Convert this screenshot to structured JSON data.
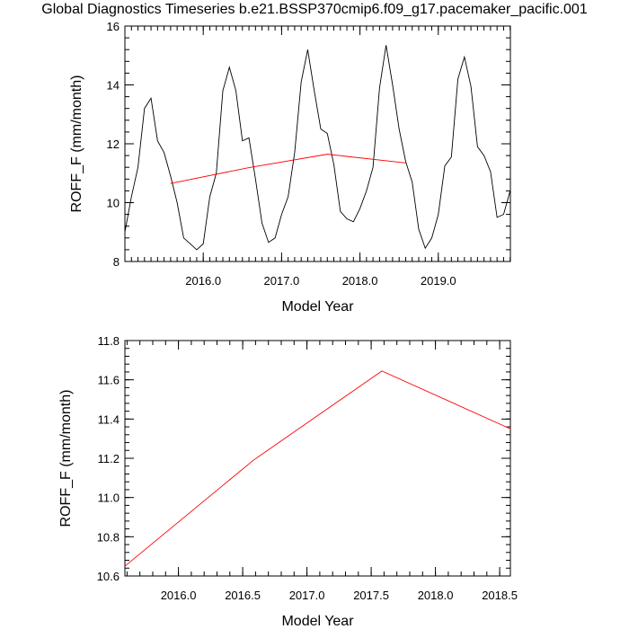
{
  "title": "Global Diagnostics Timeseries b.e21.BSSP370cmip6.f09_g17.pacemaker_pacific.001",
  "colors": {
    "monthly": "#000000",
    "annual": "#ff0000",
    "axis": "#000000"
  },
  "chart_data": [
    {
      "type": "line",
      "xlabel": "Model Year",
      "ylabel": "ROFF_F (mm/month)",
      "xlim": [
        2015.0,
        2019.92
      ],
      "ylim": [
        8,
        16
      ],
      "xticks": [
        2016.0,
        2017.0,
        2018.0,
        2019.0
      ],
      "xtick_labels": [
        "2016.0",
        "2017.0",
        "2018.0",
        "2019.0"
      ],
      "yticks": [
        8,
        10,
        12,
        14,
        16
      ],
      "ytick_labels": [
        "8",
        "10",
        "12",
        "14",
        "16"
      ],
      "series": [
        {
          "name": "monthly",
          "x": [
            2015.0,
            2015.0833,
            2015.1667,
            2015.25,
            2015.3333,
            2015.4167,
            2015.5,
            2015.5833,
            2015.6667,
            2015.75,
            2015.8333,
            2015.9167,
            2016.0,
            2016.0833,
            2016.1667,
            2016.25,
            2016.3333,
            2016.4167,
            2016.5,
            2016.5833,
            2016.6667,
            2016.75,
            2016.8333,
            2016.9167,
            2017.0,
            2017.0833,
            2017.1667,
            2017.25,
            2017.3333,
            2017.4167,
            2017.5,
            2017.5833,
            2017.6667,
            2017.75,
            2017.8333,
            2017.9167,
            2018.0,
            2018.0833,
            2018.1667,
            2018.25,
            2018.3333,
            2018.4167,
            2018.5,
            2018.5833,
            2018.6667,
            2018.75,
            2018.8333,
            2018.9167,
            2019.0,
            2019.0833,
            2019.1667,
            2019.25,
            2019.3333,
            2019.4167,
            2019.5,
            2019.5833,
            2019.6667,
            2019.75,
            2019.8333,
            2019.9167
          ],
          "y": [
            9.0,
            10.2,
            11.2,
            13.2,
            13.55,
            12.1,
            11.7,
            10.9,
            10.0,
            8.8,
            8.6,
            8.4,
            8.6,
            10.2,
            11.0,
            13.8,
            14.6,
            13.8,
            12.1,
            12.2,
            10.8,
            9.3,
            8.65,
            8.8,
            9.6,
            10.2,
            11.7,
            14.1,
            15.2,
            13.8,
            12.5,
            12.35,
            11.3,
            9.7,
            9.45,
            9.35,
            9.8,
            10.4,
            11.2,
            13.9,
            15.35,
            14.0,
            12.5,
            11.4,
            10.7,
            9.1,
            8.45,
            8.8,
            9.6,
            11.25,
            11.55,
            14.2,
            14.95,
            13.95,
            11.9,
            11.6,
            11.05,
            9.5,
            9.6,
            10.4
          ]
        },
        {
          "name": "annual",
          "x": [
            2015.5833,
            2016.5833,
            2017.5833,
            2018.5833
          ],
          "y": [
            10.65,
            11.19,
            11.645,
            11.35
          ]
        }
      ]
    },
    {
      "type": "line",
      "xlabel": "Model Year",
      "ylabel": "ROFF_F (mm/month)",
      "xlim": [
        2015.5833,
        2018.5833
      ],
      "ylim": [
        10.6,
        11.8
      ],
      "xticks": [
        2016.0,
        2016.5,
        2017.0,
        2017.5,
        2018.0,
        2018.5
      ],
      "xtick_labels": [
        "2016.0",
        "2016.5",
        "2017.0",
        "2017.5",
        "2018.0",
        "2018.5"
      ],
      "yticks": [
        10.6,
        10.8,
        11.0,
        11.2,
        11.4,
        11.6,
        11.8
      ],
      "ytick_labels": [
        "10.6",
        "10.8",
        "11.0",
        "11.2",
        "11.4",
        "11.6",
        "11.8"
      ],
      "series": [
        {
          "name": "annual",
          "x": [
            2015.5833,
            2016.5833,
            2017.5833,
            2018.5833
          ],
          "y": [
            10.65,
            11.19,
            11.645,
            11.35
          ]
        }
      ]
    }
  ]
}
